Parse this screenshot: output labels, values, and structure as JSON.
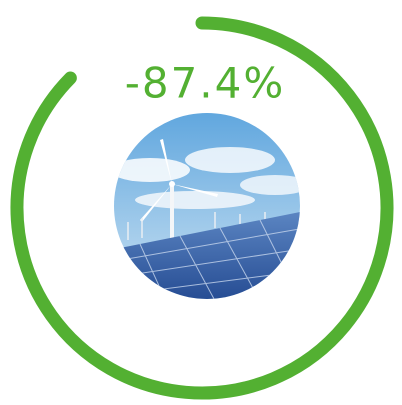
{
  "chart_data": {
    "type": "ring",
    "value": -87.4,
    "value_labels": "-87.4%",
    "color": "#53b032"
  }
}
